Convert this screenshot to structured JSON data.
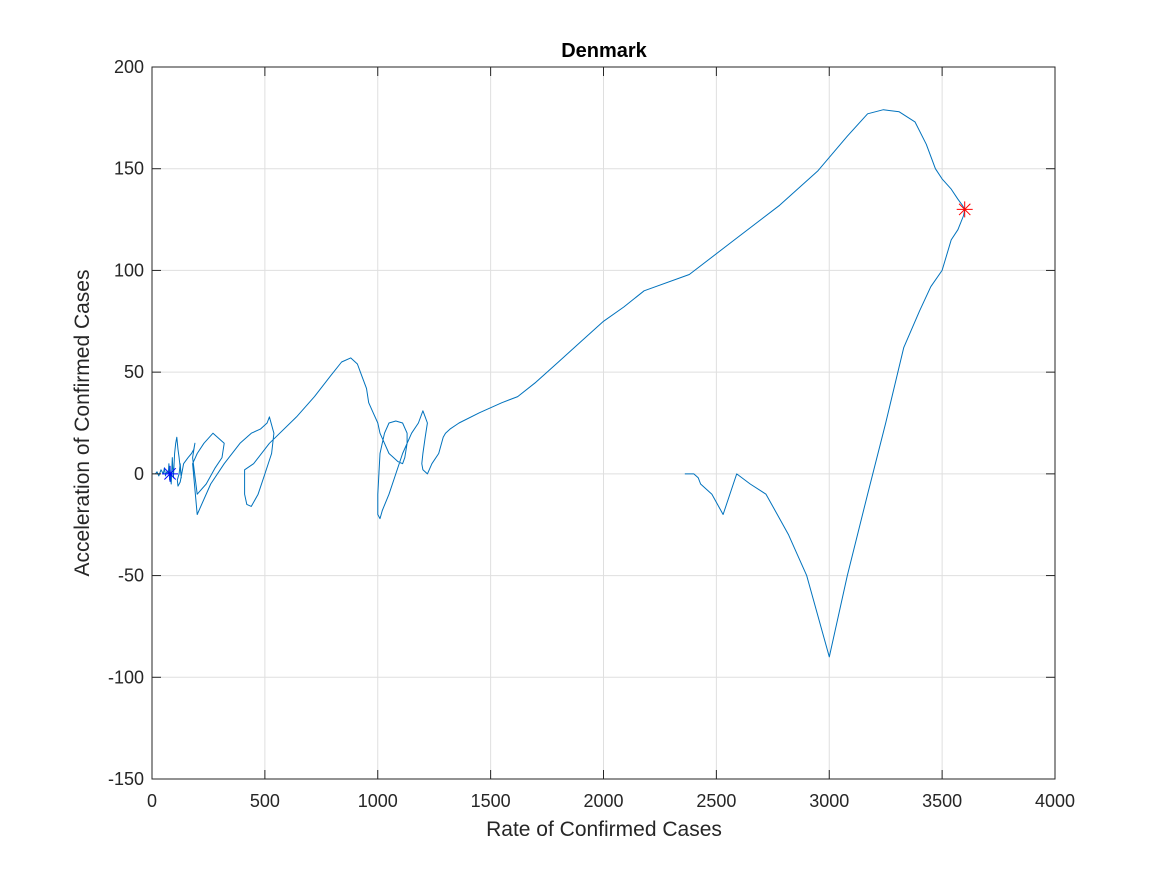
{
  "colors": {
    "series": "#0072BD",
    "start_marker": "#0000FF",
    "end_marker": "#FF0000",
    "grid": "#DFDFDF",
    "axis": "#262626"
  },
  "chart_data": {
    "type": "line",
    "title": "Denmark",
    "xlabel": "Rate of Confirmed Cases",
    "ylabel": "Acceleration of Confirmed Cases",
    "xlim": [
      0,
      4000
    ],
    "ylim": [
      -150,
      200
    ],
    "xticks": [
      0,
      500,
      1000,
      1500,
      2000,
      2500,
      3000,
      3500,
      4000
    ],
    "yticks": [
      -150,
      -100,
      -50,
      0,
      50,
      100,
      150,
      200
    ],
    "xtick_labels": [
      "0",
      "500",
      "1000",
      "1500",
      "2000",
      "2500",
      "3000",
      "3500",
      "4000"
    ],
    "ytick_labels": [
      "-150",
      "-100",
      "-50",
      "0",
      "50",
      "100",
      "150",
      "200"
    ],
    "grid": true,
    "box": true,
    "series": [
      {
        "marker_start": "asterisk",
        "marker_end": "asterisk",
        "x": [
          15,
          22,
          30,
          40,
          50,
          55,
          60,
          65,
          72,
          75,
          78,
          80,
          82,
          85,
          90,
          92,
          95,
          100,
          105,
          110,
          115,
          120,
          125,
          130,
          125,
          120,
          112,
          115,
          125,
          140,
          160,
          175,
          185,
          190,
          180,
          200,
          240,
          280,
          310,
          320,
          270,
          230,
          200,
          180,
          200,
          260,
          320,
          390,
          440,
          480,
          510,
          520,
          540,
          530,
          500,
          470,
          440,
          420,
          410,
          410,
          450,
          520,
          640,
          720,
          790,
          840,
          880,
          910,
          930,
          950,
          960,
          980,
          1000,
          1010,
          1030,
          1050,
          1070,
          1090,
          1110,
          1120,
          1130,
          1130,
          1110,
          1080,
          1050,
          1030,
          1010,
          1005,
          1000,
          1000,
          1010,
          1020,
          1050,
          1080,
          1110,
          1150,
          1180,
          1200,
          1210,
          1220,
          1210,
          1200,
          1195,
          1200,
          1220,
          1240,
          1270,
          1290,
          1300,
          1320,
          1360,
          1450,
          1550,
          1620,
          1700,
          1800,
          1900,
          2000,
          2090,
          2180,
          2380,
          2580,
          2780,
          2950,
          3080,
          3170,
          3240,
          3310,
          3380,
          3430,
          3470,
          3500,
          3540,
          3570,
          3590,
          3600,
          3595,
          3570,
          3540,
          3500,
          3450,
          3400,
          3330,
          3250,
          3170,
          3080,
          3000,
          2950,
          2900,
          2860,
          2820,
          2770,
          2720,
          2650,
          2590,
          2530,
          2480,
          2430,
          2420,
          2410,
          2400,
          2390,
          2380,
          2370,
          2360
        ],
        "y": [
          0,
          1,
          -1,
          2,
          0,
          3,
          -1,
          1,
          0,
          5,
          -3,
          2,
          0,
          -5,
          8,
          3,
          -2,
          10,
          15,
          18,
          12,
          8,
          3,
          -2,
          5,
          0,
          -3,
          -6,
          -4,
          5,
          8,
          10,
          12,
          15,
          8,
          -10,
          -5,
          3,
          8,
          15,
          20,
          15,
          10,
          5,
          -20,
          -5,
          5,
          15,
          20,
          22,
          25,
          28,
          20,
          10,
          0,
          -10,
          -16,
          -15,
          -10,
          2,
          5,
          15,
          28,
          38,
          48,
          55,
          57,
          54,
          48,
          42,
          35,
          30,
          25,
          20,
          15,
          10,
          8,
          6,
          5,
          8,
          15,
          20,
          25,
          26,
          25,
          20,
          10,
          0,
          -10,
          -20,
          -22,
          -18,
          -10,
          0,
          10,
          20,
          25,
          31,
          28,
          25,
          18,
          10,
          5,
          2,
          0,
          5,
          10,
          18,
          20,
          22,
          25,
          30,
          35,
          38,
          45,
          55,
          65,
          75,
          82,
          90,
          98,
          115,
          132,
          149,
          166,
          177,
          179,
          178,
          173,
          162,
          150,
          145,
          140,
          135,
          132,
          130,
          127,
          120,
          115,
          100,
          92,
          80,
          62,
          25,
          -10,
          -50,
          -90,
          -70,
          -50,
          -40,
          -30,
          -20,
          -10,
          -5,
          0,
          -20,
          -10,
          -5,
          -2,
          -1,
          0,
          0,
          0,
          0,
          0
        ]
      }
    ],
    "start_point": {
      "x": 80,
      "y": 0
    },
    "end_point": {
      "x": 3600,
      "y": 130
    }
  }
}
